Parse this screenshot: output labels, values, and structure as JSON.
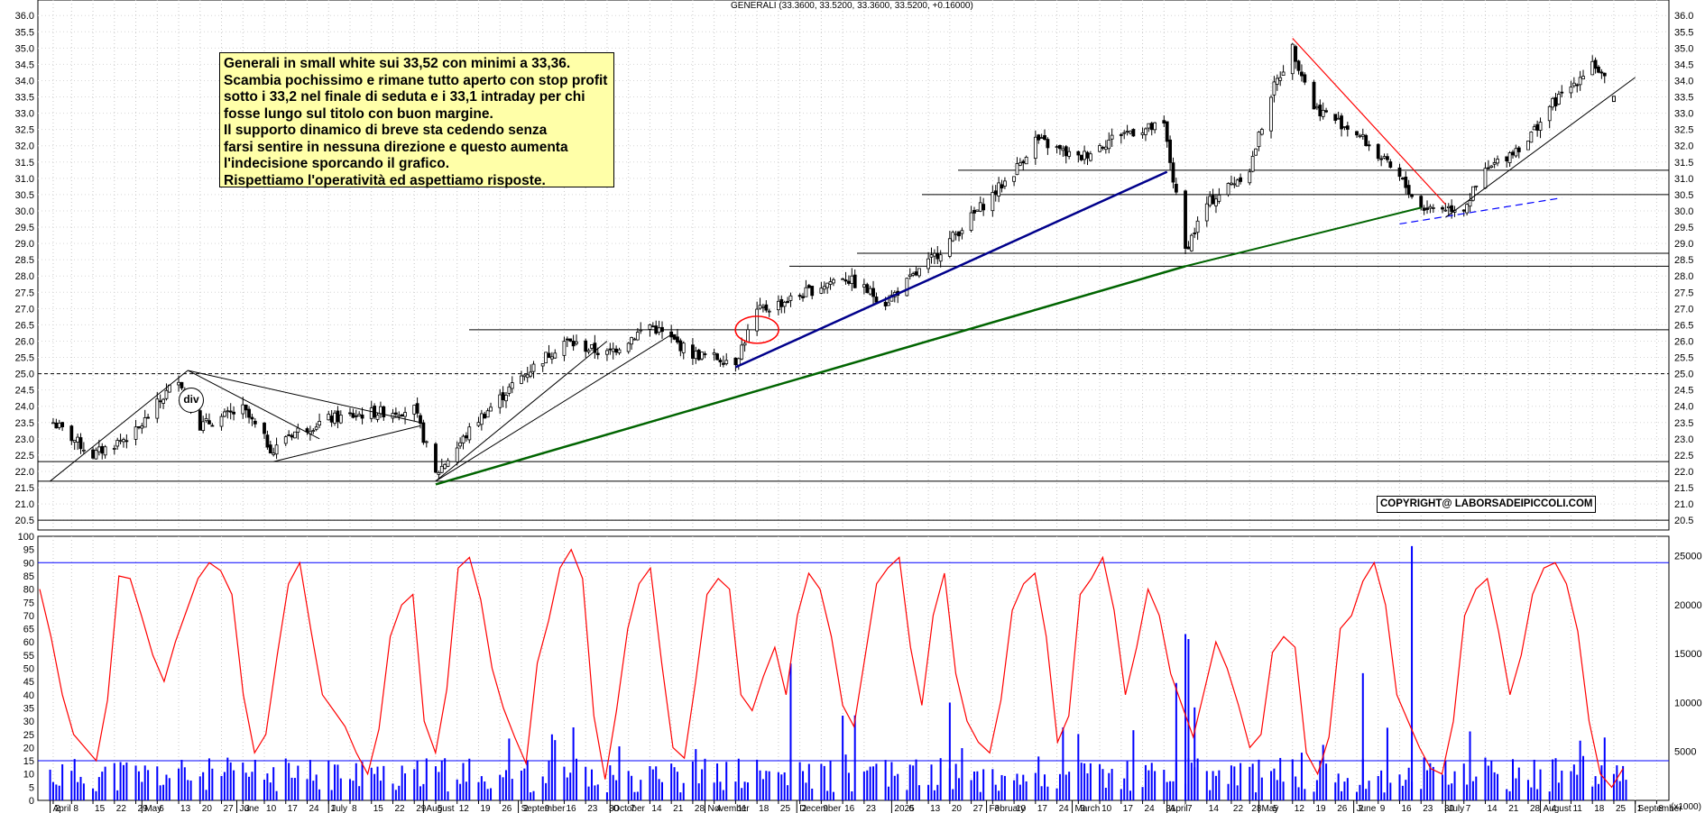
{
  "chart_title": "GENERALI (33.3600, 33.5200, 33.3600, 33.5200, +0.16000)",
  "note_lines": [
    "Generali in small white sui 33,52 con minimi a 33,36.",
    "Scambia pochissimo e rimane tutto aperto con stop profit",
    "sotto i 33,2 nel finale di seduta e i 33,1 intraday per chi",
    "fosse lungo sul titolo con buon margine.",
    "Il supporto dinamico  di breve sta cedendo senza",
    "farsi sentire in nessuna direzione e questo aumenta",
    "l'indecisione sporcando il grafico.",
    "Rispettiamo l'operatività ed aspettiamo risposte."
  ],
  "copyright": "COPYRIGHT@ LABORSADEIPICCOLI.COM",
  "div_label": "div",
  "colors": {
    "candle": "#000000",
    "oscillator": "#ff0000",
    "volume": "#0000ff",
    "note_bg": "#ffffa8",
    "support_green": "#006400",
    "trend_navy": "#00008b"
  },
  "chart_data": [
    {
      "type": "candlestick",
      "title": "GENERALI (33.3600, 33.5200, 33.3600, 33.5200, +0.16000)",
      "ylim": [
        20.2,
        36.2
      ],
      "y_ticks": [
        "20.5",
        "21.0",
        "21.5",
        "22.0",
        "22.5",
        "23.0",
        "23.5",
        "24.0",
        "24.5",
        "25.0",
        "25.5",
        "26.0",
        "26.5",
        "27.0",
        "27.5",
        "28.0",
        "28.5",
        "29.0",
        "29.5",
        "30.0",
        "30.5",
        "31.0",
        "31.5",
        "32.0",
        "32.5",
        "33.0",
        "33.5",
        "34.0",
        "34.5",
        "35.0",
        "35.5",
        "36.0"
      ],
      "approx_closes": [
        {
          "x": "2024-04-02",
          "y": 23.5
        },
        {
          "x": "2024-04-15",
          "y": 22.5
        },
        {
          "x": "2024-04-29",
          "y": 23.2
        },
        {
          "x": "2024-05-13",
          "y": 24.9
        },
        {
          "x": "2024-05-20",
          "y": 23.4
        },
        {
          "x": "2024-06-03",
          "y": 23.9
        },
        {
          "x": "2024-06-13",
          "y": 22.6
        },
        {
          "x": "2024-06-17",
          "y": 23.1
        },
        {
          "x": "2024-07-01",
          "y": 23.6
        },
        {
          "x": "2024-07-15",
          "y": 23.8
        },
        {
          "x": "2024-07-29",
          "y": 23.9
        },
        {
          "x": "2024-08-05",
          "y": 21.9
        },
        {
          "x": "2024-08-19",
          "y": 23.6
        },
        {
          "x": "2024-09-02",
          "y": 24.9
        },
        {
          "x": "2024-09-16",
          "y": 26.0
        },
        {
          "x": "2024-09-30",
          "y": 25.6
        },
        {
          "x": "2024-10-14",
          "y": 26.5
        },
        {
          "x": "2024-10-28",
          "y": 25.6
        },
        {
          "x": "2024-11-11",
          "y": 25.4
        },
        {
          "x": "2024-11-18",
          "y": 26.9
        },
        {
          "x": "2024-12-02",
          "y": 27.4
        },
        {
          "x": "2024-12-16",
          "y": 28.0
        },
        {
          "x": "2024-12-30",
          "y": 27.2
        },
        {
          "x": "2025-01-13",
          "y": 28.4
        },
        {
          "x": "2025-01-27",
          "y": 29.8
        },
        {
          "x": "2025-02-10",
          "y": 31.2
        },
        {
          "x": "2025-02-17",
          "y": 32.2
        },
        {
          "x": "2025-03-03",
          "y": 31.6
        },
        {
          "x": "2025-03-17",
          "y": 32.4
        },
        {
          "x": "2025-03-31",
          "y": 32.6
        },
        {
          "x": "2025-04-07",
          "y": 28.8
        },
        {
          "x": "2025-04-14",
          "y": 30.2
        },
        {
          "x": "2025-04-28",
          "y": 31.3
        },
        {
          "x": "2025-05-05",
          "y": 33.6
        },
        {
          "x": "2025-05-12",
          "y": 35.0
        },
        {
          "x": "2025-05-19",
          "y": 33.2
        },
        {
          "x": "2025-06-02",
          "y": 32.4
        },
        {
          "x": "2025-06-16",
          "y": 31.0
        },
        {
          "x": "2025-06-23",
          "y": 30.1
        },
        {
          "x": "2025-07-07",
          "y": 30.1
        },
        {
          "x": "2025-07-14",
          "y": 31.2
        },
        {
          "x": "2025-07-28",
          "y": 32.2
        },
        {
          "x": "2025-08-04",
          "y": 33.2
        },
        {
          "x": "2025-08-11",
          "y": 33.8
        },
        {
          "x": "2025-08-18",
          "y": 34.6
        },
        {
          "x": "2025-08-25",
          "y": 33.52
        }
      ],
      "horizontal_levels": [
        20.5,
        21.7,
        22.3,
        25.0,
        26.35,
        28.3,
        28.7,
        30.5,
        31.25
      ],
      "annotation": "div"
    },
    {
      "type": "line",
      "ylim": [
        0,
        100
      ],
      "y_ticks": [
        "0",
        "5",
        "10",
        "15",
        "20",
        "25",
        "30",
        "35",
        "40",
        "45",
        "50",
        "55",
        "60",
        "65",
        "70",
        "75",
        "80",
        "85",
        "90",
        "95",
        "100"
      ],
      "reference_levels": [
        15,
        90
      ],
      "series": [
        {
          "values": [
            80,
            62,
            40,
            25,
            20,
            15,
            38,
            85,
            84,
            70,
            55,
            45,
            60,
            72,
            84,
            90,
            87,
            78,
            40,
            18,
            25,
            55,
            82,
            90,
            64,
            40,
            34,
            28,
            18,
            10,
            27,
            62,
            74,
            78,
            30,
            18,
            42,
            88,
            92,
            76,
            50,
            35,
            24,
            14,
            52,
            68,
            88,
            95,
            84,
            32,
            8,
            34,
            65,
            82,
            88,
            52,
            20,
            16,
            45,
            78,
            84,
            80,
            40,
            34,
            47,
            58,
            40,
            70,
            86,
            80,
            62,
            36,
            28,
            55,
            82,
            88,
            92,
            58,
            36,
            70,
            86,
            48,
            30,
            22,
            18,
            38,
            72,
            82,
            86,
            62,
            22,
            32,
            78,
            84,
            92,
            72,
            40,
            58,
            80,
            70,
            48,
            36,
            24,
            42,
            60,
            50,
            36,
            20,
            25,
            56,
            62,
            58,
            18,
            10,
            24,
            65,
            70,
            83,
            90,
            74,
            40,
            30,
            20,
            12,
            10,
            30,
            70,
            80,
            84,
            64,
            40,
            55,
            78,
            88,
            90,
            82,
            64,
            30,
            10,
            5,
            12
          ]
        }
      ]
    },
    {
      "type": "bar",
      "ylim": [
        0,
        27000
      ],
      "y_ticks": [
        "5000",
        "10000",
        "15000",
        "20000",
        "25000"
      ],
      "reference_levels": [
        5000,
        25000
      ]
    }
  ],
  "x_axis": {
    "day_ticks": [
      {
        "x": "2024-04-02",
        "label": "2"
      },
      {
        "x": "2024-04-08",
        "label": "8"
      },
      {
        "x": "2024-04-15",
        "label": "15"
      },
      {
        "x": "2024-04-22",
        "label": "22"
      },
      {
        "x": "2024-04-29",
        "label": "29"
      },
      {
        "x": "2024-05-06",
        "label": "6"
      },
      {
        "x": "2024-05-13",
        "label": "13"
      },
      {
        "x": "2024-05-20",
        "label": "20"
      },
      {
        "x": "2024-05-27",
        "label": "27"
      },
      {
        "x": "2024-06-03",
        "label": "3"
      },
      {
        "x": "2024-06-10",
        "label": "10"
      },
      {
        "x": "2024-06-17",
        "label": "17"
      },
      {
        "x": "2024-06-24",
        "label": "24"
      },
      {
        "x": "2024-07-01",
        "label": "1"
      },
      {
        "x": "2024-07-08",
        "label": "8"
      },
      {
        "x": "2024-07-15",
        "label": "15"
      },
      {
        "x": "2024-07-22",
        "label": "22"
      },
      {
        "x": "2024-07-29",
        "label": "29"
      },
      {
        "x": "2024-08-05",
        "label": "5"
      },
      {
        "x": "2024-08-12",
        "label": "12"
      },
      {
        "x": "2024-08-19",
        "label": "19"
      },
      {
        "x": "2024-08-26",
        "label": "26"
      },
      {
        "x": "2024-09-02",
        "label": "2"
      },
      {
        "x": "2024-09-09",
        "label": "9"
      },
      {
        "x": "2024-09-16",
        "label": "16"
      },
      {
        "x": "2024-09-23",
        "label": "23"
      },
      {
        "x": "2024-09-30",
        "label": "30"
      },
      {
        "x": "2024-10-07",
        "label": "7"
      },
      {
        "x": "2024-10-14",
        "label": "14"
      },
      {
        "x": "2024-10-21",
        "label": "21"
      },
      {
        "x": "2024-10-28",
        "label": "28"
      },
      {
        "x": "2024-11-04",
        "label": "4"
      },
      {
        "x": "2024-11-11",
        "label": "11"
      },
      {
        "x": "2024-11-18",
        "label": "18"
      },
      {
        "x": "2024-11-25",
        "label": "25"
      },
      {
        "x": "2024-12-02",
        "label": "2"
      },
      {
        "x": "2024-12-09",
        "label": "9"
      },
      {
        "x": "2024-12-16",
        "label": "16"
      },
      {
        "x": "2024-12-23",
        "label": "23"
      },
      {
        "x": "2025-01-06",
        "label": "6"
      },
      {
        "x": "2025-01-13",
        "label": "13"
      },
      {
        "x": "2025-01-20",
        "label": "20"
      },
      {
        "x": "2025-01-27",
        "label": "27"
      },
      {
        "x": "2025-02-03",
        "label": "3"
      },
      {
        "x": "2025-02-10",
        "label": "10"
      },
      {
        "x": "2025-02-17",
        "label": "17"
      },
      {
        "x": "2025-02-24",
        "label": "24"
      },
      {
        "x": "2025-03-03",
        "label": "3"
      },
      {
        "x": "2025-03-10",
        "label": "10"
      },
      {
        "x": "2025-03-17",
        "label": "17"
      },
      {
        "x": "2025-03-24",
        "label": "24"
      },
      {
        "x": "2025-03-31",
        "label": "31"
      },
      {
        "x": "2025-04-07",
        "label": "7"
      },
      {
        "x": "2025-04-14",
        "label": "14"
      },
      {
        "x": "2025-04-22",
        "label": "22"
      },
      {
        "x": "2025-04-28",
        "label": "28"
      },
      {
        "x": "2025-05-05",
        "label": "5"
      },
      {
        "x": "2025-05-12",
        "label": "12"
      },
      {
        "x": "2025-05-19",
        "label": "19"
      },
      {
        "x": "2025-05-26",
        "label": "26"
      },
      {
        "x": "2025-06-02",
        "label": "2"
      },
      {
        "x": "2025-06-09",
        "label": "9"
      },
      {
        "x": "2025-06-16",
        "label": "16"
      },
      {
        "x": "2025-06-23",
        "label": "23"
      },
      {
        "x": "2025-06-30",
        "label": "30"
      },
      {
        "x": "2025-07-07",
        "label": "7"
      },
      {
        "x": "2025-07-14",
        "label": "14"
      },
      {
        "x": "2025-07-21",
        "label": "21"
      },
      {
        "x": "2025-07-28",
        "label": "28"
      },
      {
        "x": "2025-08-04",
        "label": "4"
      },
      {
        "x": "2025-08-11",
        "label": "11"
      },
      {
        "x": "2025-08-18",
        "label": "18"
      },
      {
        "x": "2025-08-25",
        "label": "25"
      },
      {
        "x": "2025-09-01",
        "label": "1"
      },
      {
        "x": "2025-09-08",
        "label": "8"
      }
    ],
    "month_labels": [
      {
        "x": "2024-04-01",
        "label": "April"
      },
      {
        "x": "2024-05-01",
        "label": "May"
      },
      {
        "x": "2024-06-01",
        "label": "June"
      },
      {
        "x": "2024-07-01",
        "label": "July"
      },
      {
        "x": "2024-08-01",
        "label": "August"
      },
      {
        "x": "2024-09-01",
        "label": "September"
      },
      {
        "x": "2024-10-01",
        "label": "October"
      },
      {
        "x": "2024-11-01",
        "label": "November"
      },
      {
        "x": "2024-12-01",
        "label": "December"
      },
      {
        "x": "2025-01-01",
        "label": "2025"
      },
      {
        "x": "2025-02-01",
        "label": "February"
      },
      {
        "x": "2025-03-01",
        "label": "March"
      },
      {
        "x": "2025-04-01",
        "label": "April"
      },
      {
        "x": "2025-05-01",
        "label": "May"
      },
      {
        "x": "2025-06-01",
        "label": "June"
      },
      {
        "x": "2025-07-01",
        "label": "July"
      },
      {
        "x": "2025-08-01",
        "label": "August"
      },
      {
        "x": "2025-09-01",
        "label": "September"
      }
    ],
    "xlim": [
      "2024-03-28",
      "2025-09-12"
    ],
    "corner_label": "(x1000)"
  }
}
